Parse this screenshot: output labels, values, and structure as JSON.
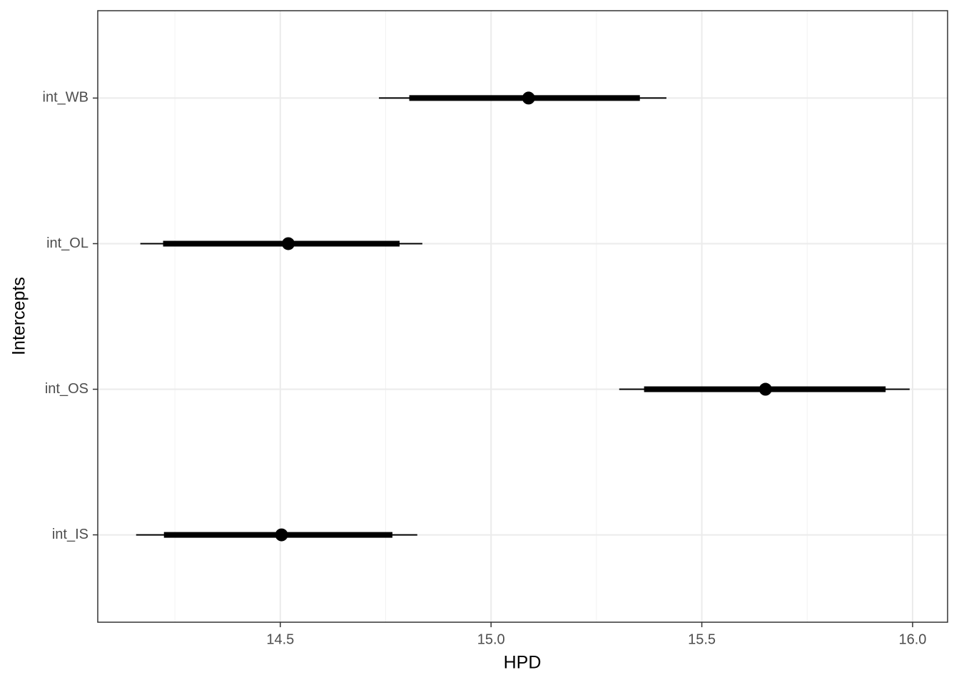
{
  "chart_data": {
    "type": "interval",
    "x_label": "HPD",
    "y_label": "Intercepts",
    "categories": [
      "int_IS",
      "int_OS",
      "int_OL",
      "int_WB"
    ],
    "values": [
      14.503,
      15.651,
      14.519,
      15.089
    ],
    "inner_low": [
      14.224,
      15.363,
      14.222,
      14.806
    ],
    "inner_high": [
      14.766,
      15.936,
      14.783,
      15.353
    ],
    "outer_low": [
      14.158,
      15.304,
      14.168,
      14.734
    ],
    "outer_high": [
      14.825,
      15.993,
      14.837,
      15.416
    ],
    "color": "#000000",
    "xlim": [
      14.067,
      16.083
    ],
    "xticks": [
      14.5,
      {
        "value": 15.0,
        "label": "15.0"
      },
      15.5,
      {
        "value": 16.0,
        "label": "16.0"
      }
    ],
    "xminorticks": [
      14.25,
      14.75,
      15.25,
      15.75
    ],
    "grid": true
  }
}
